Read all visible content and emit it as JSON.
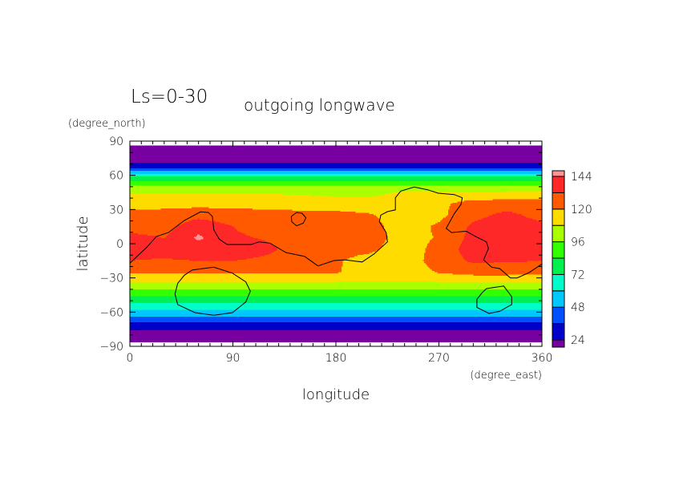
{
  "chart_data": {
    "type": "heatmap",
    "title": "Ls=0-30",
    "subtitle": "outgoing longwave",
    "xlabel": "longitude",
    "xunits": "(degree_east)",
    "ylabel": "latitude",
    "yunits": "(degree_north)",
    "xlim": [
      0,
      360
    ],
    "ylim": [
      -90,
      90
    ],
    "data_lat_extent": [
      -86,
      86
    ],
    "xticks": [
      0,
      90,
      180,
      270,
      360
    ],
    "yticks": [
      90,
      60,
      30,
      0,
      -30,
      -60,
      -90
    ],
    "minor_tick_step": 10,
    "colorbar": {
      "levels": [
        24,
        36,
        48,
        60,
        72,
        84,
        96,
        108,
        120,
        132,
        144
      ],
      "tick_labels": [
        144,
        120,
        96,
        72,
        48,
        24
      ],
      "colors": [
        "#7800a0",
        "#0000c8",
        "#0050ff",
        "#00c8ff",
        "#00ffc8",
        "#00f050",
        "#32ff00",
        "#aaff00",
        "#ffdc00",
        "#ff5a00",
        "#ff2828",
        "#ff9696"
      ]
    },
    "grid": {
      "lon": [
        0,
        30,
        60,
        90,
        120,
        150,
        180,
        210,
        240,
        270,
        300,
        330,
        360
      ],
      "lat": [
        86,
        72,
        66,
        64,
        61,
        59,
        55,
        51,
        44,
        35,
        25,
        15,
        5,
        -5,
        -15,
        -25,
        -30,
        -37,
        -43,
        -49,
        -55,
        -61,
        -66.5,
        -72,
        -78,
        -86
      ],
      "values": [
        [
          16,
          16,
          16,
          16,
          16,
          16,
          16,
          16,
          16,
          16,
          16,
          16,
          16
        ],
        [
          21,
          21,
          21,
          21,
          21,
          21,
          21,
          21,
          21,
          21,
          21,
          21,
          21
        ],
        [
          36,
          36,
          36,
          36,
          36,
          36,
          36,
          36,
          36,
          36,
          36,
          36,
          36
        ],
        [
          48,
          48,
          48,
          48,
          48,
          48,
          48,
          48,
          48,
          48,
          48,
          48,
          48
        ],
        [
          60,
          60,
          60,
          60,
          60,
          60,
          60,
          60,
          60,
          60,
          60,
          60,
          60
        ],
        [
          72,
          72,
          72,
          72,
          72,
          72,
          72,
          72,
          72,
          72,
          72,
          72,
          72
        ],
        [
          84,
          84,
          84,
          84,
          84,
          84,
          84,
          84,
          84,
          84,
          84,
          84,
          84
        ],
        [
          96,
          96,
          96,
          96,
          96,
          96,
          96,
          96,
          97,
          97,
          97,
          97,
          97
        ],
        [
          108,
          108,
          108,
          108,
          108,
          107,
          105,
          105,
          111,
          111,
          110,
          111,
          111
        ],
        [
          116,
          116,
          116,
          116,
          116,
          116,
          115,
          114,
          114,
          117,
          126,
          126,
          126
        ],
        [
          124,
          125,
          128,
          126,
          124,
          123,
          123,
          121,
          114,
          117,
          129,
          135,
          128
        ],
        [
          128,
          127,
          140,
          132,
          126,
          125,
          126,
          124,
          114,
          122,
          134,
          139,
          135
        ],
        [
          135,
          132,
          146,
          134,
          131,
          126,
          125,
          125,
          115,
          121,
          136,
          140,
          138
        ],
        [
          135,
          136,
          137,
          138,
          134,
          128,
          124,
          122,
          114,
          124,
          138,
          139,
          138
        ],
        [
          132,
          131,
          132,
          132,
          130,
          126,
          121,
          116,
          114,
          125,
          134,
          133,
          132
        ],
        [
          122,
          122,
          122,
          122,
          122,
          122,
          121,
          115,
          113,
          121,
          124,
          124,
          123
        ],
        [
          114,
          114,
          114,
          114,
          114,
          114,
          114,
          113,
          112,
          114,
          116,
          116,
          115
        ],
        [
          102,
          102,
          102,
          102,
          102,
          102,
          102,
          102,
          102,
          102,
          102,
          102,
          102
        ],
        [
          91,
          91,
          91,
          91,
          91,
          91,
          91,
          91,
          91,
          91,
          91,
          91,
          91
        ],
        [
          78,
          78,
          78,
          78,
          78,
          78,
          78,
          78,
          78,
          78,
          78,
          78,
          78
        ],
        [
          66,
          66,
          66,
          66,
          66,
          66,
          66,
          66,
          66,
          66,
          66,
          66,
          66
        ],
        [
          54,
          54,
          54,
          54,
          54,
          54,
          54,
          54,
          54,
          54,
          54,
          54,
          54
        ],
        [
          42,
          42,
          42,
          42,
          42,
          42,
          42,
          42,
          42,
          42,
          42,
          42,
          42
        ],
        [
          30,
          30,
          30,
          30,
          30,
          30,
          30,
          30,
          30,
          30,
          30,
          30,
          30
        ],
        [
          20,
          20,
          20,
          20,
          20,
          20,
          20,
          20,
          20,
          20,
          20,
          20,
          20
        ],
        [
          16,
          16,
          16,
          16,
          16,
          16,
          16,
          16,
          16,
          16,
          16,
          16,
          16
        ]
      ]
    },
    "contours": [
      [
        [
          0,
          -17.1
        ],
        [
          14.9,
          -3.0
        ],
        [
          23.1,
          6.3
        ],
        [
          33.6,
          9.8
        ],
        [
          47.6,
          20.4
        ],
        [
          61.6,
          27.9
        ],
        [
          68.6,
          27.4
        ],
        [
          72.1,
          23.9
        ],
        [
          73.3,
          12.2
        ],
        [
          78.0,
          4.0
        ],
        [
          85.0,
          -0.7
        ],
        [
          106.0,
          -0.7
        ],
        [
          113.0,
          1.6
        ],
        [
          122.4,
          0.5
        ],
        [
          136.4,
          -7.7
        ],
        [
          152.7,
          -11.2
        ],
        [
          164.4,
          -19.5
        ],
        [
          178.4,
          -14.8
        ],
        [
          187.7,
          -14.1
        ],
        [
          202.9,
          -16.0
        ],
        [
          213.4,
          -8.9
        ],
        [
          225.0,
          1.6
        ],
        [
          223.9,
          9.8
        ],
        [
          218.0,
          19.2
        ],
        [
          219.2,
          25.1
        ],
        [
          225.0,
          28.1
        ],
        [
          232.0,
          29.7
        ],
        [
          232.0,
          40.3
        ],
        [
          236.7,
          46.2
        ],
        [
          248.4,
          49.7
        ],
        [
          260.1,
          47.3
        ],
        [
          269.4,
          44.3
        ],
        [
          283.4,
          43.1
        ],
        [
          290.4,
          40.3
        ],
        [
          289.3,
          34.5
        ],
        [
          283.4,
          26.2
        ],
        [
          276.4,
          13.4
        ],
        [
          281.1,
          9.8
        ],
        [
          293.9,
          11.0
        ],
        [
          302.1,
          6.3
        ],
        [
          311.5,
          1.6
        ],
        [
          313.3,
          -4.2
        ],
        [
          309.1,
          -14.1
        ],
        [
          316.1,
          -20.6
        ],
        [
          323.1,
          -21.8
        ],
        [
          332.5,
          -30.0
        ],
        [
          338.3,
          -30.0
        ],
        [
          348.8,
          -25.3
        ],
        [
          360,
          -17.8
        ]
      ],
      [
        [
          54.6,
          -23.0
        ],
        [
          73.3,
          -20.6
        ],
        [
          89.6,
          -25.8
        ],
        [
          101.3,
          -33.5
        ],
        [
          105.3,
          -41.7
        ],
        [
          101.3,
          -51.1
        ],
        [
          89.6,
          -60.5
        ],
        [
          73.3,
          -62.8
        ],
        [
          56.9,
          -60.5
        ],
        [
          41.8,
          -53.4
        ],
        [
          39.4,
          -44.1
        ],
        [
          41.8,
          -34.7
        ],
        [
          47.6,
          -27.6
        ],
        [
          54.6,
          -23.0
        ]
      ],
      [
        [
          311.5,
          -39.4
        ],
        [
          326.6,
          -37.1
        ],
        [
          333.6,
          -46.4
        ],
        [
          333.6,
          -53.4
        ],
        [
          323.1,
          -59.3
        ],
        [
          313.8,
          -61.2
        ],
        [
          303.2,
          -55.8
        ],
        [
          303.2,
          -48.7
        ],
        [
          307.9,
          -42.9
        ],
        [
          311.5,
          -39.4
        ]
      ],
      [
        [
          141.0,
          23.9
        ],
        [
          145.7,
          27.4
        ],
        [
          150.4,
          26.7
        ],
        [
          153.9,
          22.7
        ],
        [
          151.5,
          18.1
        ],
        [
          145.7,
          15.7
        ],
        [
          141.5,
          19.2
        ],
        [
          141.0,
          23.9
        ]
      ]
    ]
  }
}
